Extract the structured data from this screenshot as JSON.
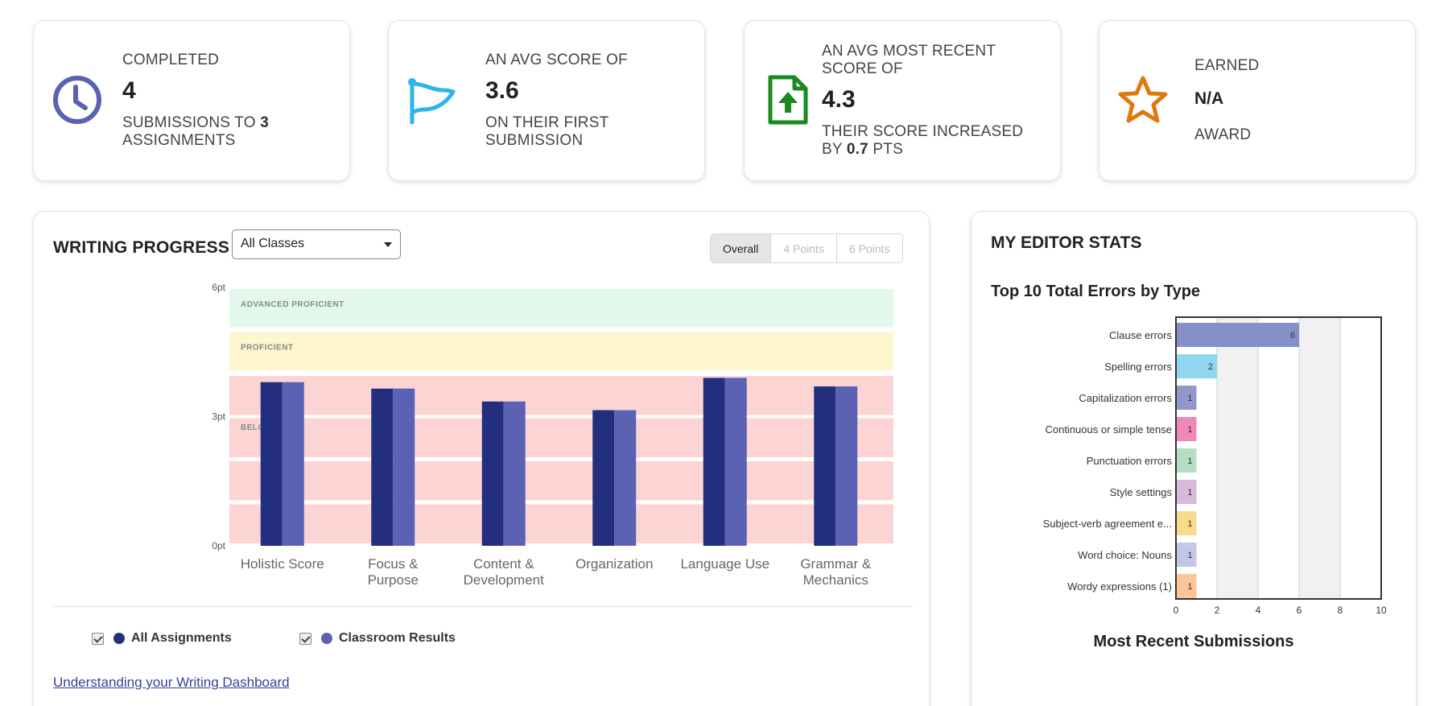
{
  "stats": [
    {
      "label_top": "COMPLETED",
      "value": "4",
      "label_bottom_pre": "SUBMISSIONS TO ",
      "label_bottom_bold": "3",
      "label_bottom_post": " ASSIGNMENTS",
      "icon": "clock-icon",
      "color": "#5b62b4"
    },
    {
      "label_top": "AN AVG SCORE OF",
      "value": "3.6",
      "label_bottom_pre": "ON THEIR FIRST SUBMISSION",
      "label_bottom_bold": "",
      "label_bottom_post": "",
      "icon": "flag-icon",
      "color": "#2bb5ea"
    },
    {
      "label_top": "AN AVG MOST RECENT SCORE OF",
      "value": "4.3",
      "label_bottom_pre": "THEIR SCORE INCREASED BY ",
      "label_bottom_bold": "0.7",
      "label_bottom_post": " PTS",
      "icon": "file-upload-icon",
      "color": "#1a8a1e"
    },
    {
      "label_top": "EARNED",
      "value": "N/A",
      "label_bottom_pre": "AWARD",
      "label_bottom_bold": "",
      "label_bottom_post": "",
      "icon": "star-icon",
      "color": "#e0780e"
    }
  ],
  "writing_progress": {
    "title": "WRITING PROGRESS",
    "class_select": "All Classes",
    "tabs": [
      "Overall",
      "4 Points",
      "6 Points"
    ],
    "legend": [
      {
        "label": "All Assignments",
        "color": "#222f7f"
      },
      {
        "label": "Classroom Results",
        "color": "#5b62b4"
      }
    ],
    "help_link": "Understanding your Writing Dashboard"
  },
  "chart_data": [
    {
      "type": "bar",
      "yticks": [
        "6pt",
        "3pt",
        "0pt"
      ],
      "ylim": [
        0,
        6
      ],
      "bands": [
        {
          "label": "ADVANCED PROFICIENT",
          "from": 5,
          "to": 6,
          "color": "#e2f8ec"
        },
        {
          "label": "PROFICIENT",
          "from": 4,
          "to": 5,
          "color": "#fdf6cf"
        },
        {
          "label": "BELOW",
          "from": 0,
          "to": 4,
          "color": "#fdd4d4"
        }
      ],
      "categories": [
        "Holistic Score",
        "Focus & Purpose",
        "Content & Development",
        "Organization",
        "Language Use",
        "Grammar & Mechanics"
      ],
      "category_lines": [
        [
          "Holistic Score"
        ],
        [
          "Focus &",
          "Purpose"
        ],
        [
          "Content &",
          "Development"
        ],
        [
          "Organization"
        ],
        [
          "Language Use"
        ],
        [
          "Grammar &",
          "Mechanics"
        ]
      ],
      "series": [
        {
          "name": "All Assignments",
          "color": "#222f7f",
          "values": [
            3.8,
            3.65,
            3.35,
            3.15,
            3.9,
            3.7
          ]
        },
        {
          "name": "Classroom Results",
          "color": "#5b62b4",
          "values": [
            3.8,
            3.65,
            3.35,
            3.15,
            3.9,
            3.7
          ]
        }
      ]
    },
    {
      "type": "bar",
      "orientation": "horizontal",
      "title": "Top 10 Total Errors by Type",
      "categories": [
        "Clause errors",
        "Spelling errors",
        "Capitalization errors",
        "Continuous or simple tense",
        "Punctuation errors",
        "Style settings",
        "Subject-verb agreement e...",
        "Word choice: Nouns",
        "Wordy expressions (1)"
      ],
      "values": [
        6,
        2,
        1,
        1,
        1,
        1,
        1,
        1,
        1
      ],
      "colors": [
        "#8690c8",
        "#90d6ee",
        "#9196cc",
        "#ef87b8",
        "#b5ddc4",
        "#d9b8dc",
        "#f8dc8a",
        "#c3c7e6",
        "#fbc598"
      ],
      "xticks": [
        0,
        2,
        4,
        6,
        8,
        10
      ],
      "xlim": [
        0,
        10
      ]
    }
  ],
  "editor_stats": {
    "title": "MY EDITOR STATS",
    "subtitle": "Top 10 Total Errors by Type",
    "recent_title": "Most Recent Submissions"
  }
}
